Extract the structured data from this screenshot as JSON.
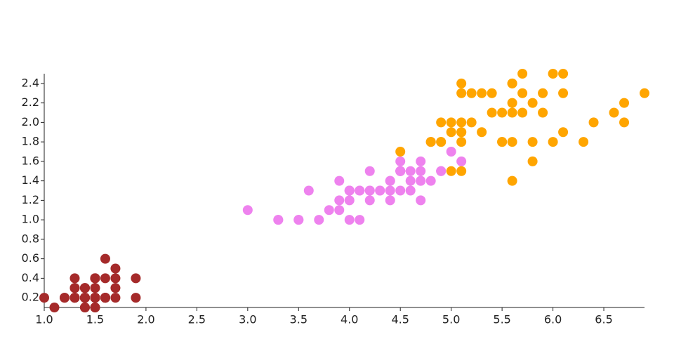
{
  "chart_data": {
    "type": "scatter",
    "xlim": [
      1.0,
      6.9
    ],
    "ylim": [
      0.1,
      2.5
    ],
    "xticks": [
      {
        "value": 1,
        "label": "1.0"
      },
      1.5,
      {
        "value": 2,
        "label": "2.0"
      },
      2.5,
      {
        "value": 3,
        "label": "3.0"
      },
      3.5,
      {
        "value": 4,
        "label": "4.0"
      },
      4.5,
      {
        "value": 5,
        "label": "5.0"
      },
      5.5,
      {
        "value": 6,
        "label": "6.0"
      },
      6.5
    ],
    "yticks": [
      0.2,
      0.4,
      0.6,
      0.8,
      {
        "value": 1,
        "label": "1.0"
      },
      1.2,
      1.4,
      1.6,
      1.8,
      {
        "value": 2,
        "label": "2.0"
      },
      2.2,
      2.4
    ],
    "series": [
      {
        "color": "#a52a2a",
        "x": [
          1.4,
          1.4,
          1.3,
          1.5,
          1.4,
          1.7,
          1.4,
          1.5,
          1.4,
          1.5,
          1.5,
          1.6,
          1.4,
          1.1,
          1.2,
          1.5,
          1.3,
          1.4,
          1.7,
          1.5,
          1.7,
          1.5,
          1.0,
          1.7,
          1.9,
          1.6,
          1.6,
          1.5,
          1.4,
          1.6,
          1.6,
          1.5,
          1.5,
          1.4,
          1.5,
          1.2,
          1.3,
          1.4,
          1.3,
          1.5,
          1.3,
          1.3,
          1.3,
          1.6,
          1.9,
          1.4,
          1.6,
          1.4,
          1.5,
          1.4
        ],
        "values": [
          0.2,
          0.2,
          0.2,
          0.2,
          0.2,
          0.4,
          0.3,
          0.2,
          0.2,
          0.1,
          0.2,
          0.2,
          0.1,
          0.1,
          0.2,
          0.4,
          0.4,
          0.3,
          0.3,
          0.3,
          0.2,
          0.4,
          0.2,
          0.5,
          0.2,
          0.2,
          0.4,
          0.2,
          0.2,
          0.2,
          0.2,
          0.4,
          0.1,
          0.2,
          0.2,
          0.2,
          0.2,
          0.1,
          0.2,
          0.2,
          0.3,
          0.3,
          0.2,
          0.6,
          0.4,
          0.3,
          0.2,
          0.2,
          0.2,
          0.2
        ]
      },
      {
        "color": "#ee82ee",
        "x": [
          4.7,
          4.5,
          4.9,
          4.0,
          4.6,
          4.5,
          4.7,
          3.3,
          4.6,
          3.9,
          3.5,
          4.2,
          4.0,
          4.7,
          3.6,
          4.4,
          4.5,
          4.1,
          4.5,
          3.9,
          4.8,
          4.0,
          4.9,
          4.7,
          4.3,
          4.4,
          4.8,
          5.0,
          4.5,
          3.5,
          3.8,
          3.7,
          3.9,
          5.1,
          4.5,
          4.5,
          4.7,
          4.4,
          4.1,
          4.0,
          4.4,
          4.6,
          4.0,
          3.3,
          4.2,
          4.2,
          4.2,
          4.3,
          3.0,
          4.1
        ],
        "values": [
          1.4,
          1.5,
          1.5,
          1.3,
          1.5,
          1.3,
          1.6,
          1.0,
          1.3,
          1.4,
          1.0,
          1.5,
          1.0,
          1.4,
          1.3,
          1.4,
          1.5,
          1.0,
          1.5,
          1.1,
          1.8,
          1.3,
          1.5,
          1.2,
          1.3,
          1.4,
          1.4,
          1.7,
          1.5,
          1.0,
          1.1,
          1.0,
          1.2,
          1.6,
          1.5,
          1.6,
          1.5,
          1.3,
          1.3,
          1.3,
          1.2,
          1.4,
          1.2,
          1.0,
          1.3,
          1.2,
          1.3,
          1.3,
          1.1,
          1.3
        ]
      },
      {
        "color": "#ffa500",
        "x": [
          6.0,
          5.1,
          5.9,
          5.6,
          5.8,
          6.6,
          4.5,
          6.3,
          5.8,
          6.1,
          5.1,
          5.3,
          5.5,
          5.0,
          5.1,
          5.3,
          5.5,
          6.7,
          6.9,
          5.0,
          5.7,
          4.9,
          6.7,
          4.9,
          5.7,
          6.0,
          4.8,
          4.9,
          5.6,
          5.8,
          6.1,
          6.4,
          5.6,
          5.1,
          5.6,
          6.1,
          5.6,
          5.5,
          4.8,
          5.4,
          5.6,
          5.1,
          5.1,
          5.9,
          5.7,
          5.2,
          5.0,
          5.2,
          5.4,
          5.1
        ],
        "values": [
          2.5,
          1.9,
          2.1,
          1.8,
          2.2,
          2.1,
          1.7,
          1.8,
          1.8,
          2.5,
          2.0,
          1.9,
          2.1,
          2.0,
          2.4,
          2.3,
          1.8,
          2.2,
          2.3,
          1.5,
          2.3,
          2.0,
          2.0,
          1.8,
          2.1,
          1.8,
          1.8,
          1.8,
          2.1,
          1.6,
          1.9,
          2.0,
          2.2,
          1.5,
          1.4,
          2.3,
          2.4,
          1.8,
          1.8,
          2.1,
          2.4,
          2.3,
          1.9,
          2.3,
          2.5,
          2.3,
          1.9,
          2.0,
          2.3,
          1.8
        ]
      }
    ]
  }
}
